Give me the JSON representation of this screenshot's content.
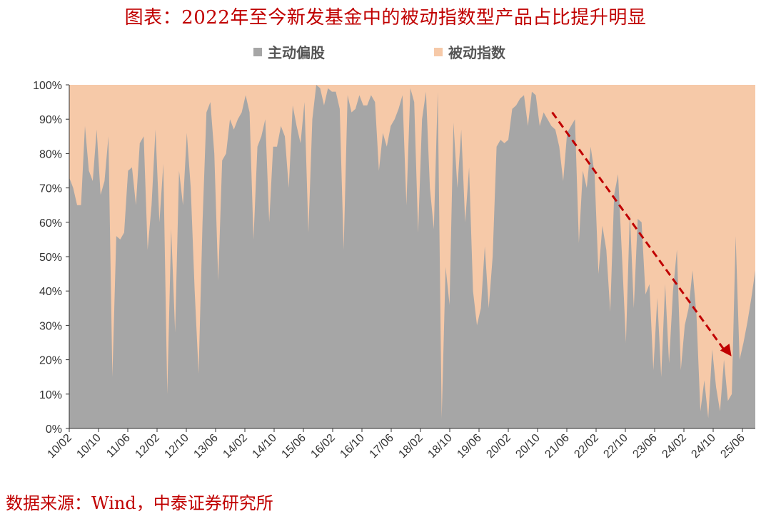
{
  "title": "图表：2022年至今新发基金中的被动指数型产品占比提升明显",
  "source": "数据来源：Wind，中泰证券研究所",
  "colors": {
    "active": "#a6a6a6",
    "passive": "#f6c9a8",
    "arrow": "#c00000",
    "axis": "#333333"
  },
  "chart_data": {
    "type": "area",
    "stacked": true,
    "percent_stacked": true,
    "legend_position": "top",
    "ylim": [
      0,
      1
    ],
    "y_ticks": [
      "0%",
      "10%",
      "20%",
      "30%",
      "40%",
      "50%",
      "60%",
      "70%",
      "80%",
      "90%",
      "100%"
    ],
    "x_tick_labels": [
      "10/02",
      "10/10",
      "11/06",
      "12/02",
      "12/10",
      "13/06",
      "14/02",
      "14/10",
      "15/06",
      "16/02",
      "16/10",
      "17/06",
      "18/02",
      "18/10",
      "19/06",
      "20/02",
      "20/10",
      "21/06",
      "22/02",
      "22/10",
      "23/06",
      "24/02",
      "24/10",
      "25/06"
    ],
    "series": [
      {
        "name": "主动偏股",
        "values": [
          0.73,
          0.7,
          0.65,
          0.65,
          0.88,
          0.75,
          0.72,
          0.87,
          0.68,
          0.72,
          0.85,
          0.15,
          0.56,
          0.55,
          0.57,
          0.75,
          0.76,
          0.65,
          0.83,
          0.85,
          0.52,
          0.65,
          0.87,
          0.6,
          0.77,
          0.1,
          0.58,
          0.28,
          0.75,
          0.65,
          0.86,
          0.7,
          0.4,
          0.16,
          0.6,
          0.92,
          0.95,
          0.8,
          0.43,
          0.78,
          0.8,
          0.9,
          0.87,
          0.9,
          0.92,
          0.97,
          0.92,
          0.55,
          0.82,
          0.85,
          0.9,
          0.6,
          0.82,
          0.82,
          0.88,
          0.85,
          0.7,
          0.94,
          0.88,
          0.83,
          0.95,
          0.57,
          0.9,
          1.0,
          0.99,
          0.94,
          0.99,
          0.98,
          0.98,
          0.93,
          0.52,
          0.97,
          0.92,
          0.93,
          0.97,
          0.94,
          0.94,
          0.97,
          0.95,
          0.75,
          0.86,
          0.82,
          0.88,
          0.9,
          0.93,
          0.97,
          0.65,
          0.99,
          0.95,
          0.57,
          0.9,
          0.98,
          0.7,
          0.58,
          0.98,
          0.03,
          0.47,
          0.36,
          0.89,
          0.7,
          0.87,
          0.6,
          0.76,
          0.4,
          0.3,
          0.35,
          0.53,
          0.35,
          0.5,
          0.82,
          0.84,
          0.83,
          0.84,
          0.93,
          0.94,
          0.96,
          0.97,
          0.88,
          0.98,
          0.97,
          0.88,
          0.92,
          0.9,
          0.88,
          0.87,
          0.82,
          0.72,
          0.86,
          0.88,
          0.9,
          0.54,
          0.75,
          0.7,
          0.82,
          0.74,
          0.45,
          0.59,
          0.52,
          0.34,
          0.68,
          0.74,
          0.5,
          0.25,
          0.63,
          0.35,
          0.61,
          0.6,
          0.39,
          0.42,
          0.17,
          0.38,
          0.15,
          0.42,
          0.19,
          0.4,
          0.52,
          0.17,
          0.3,
          0.35,
          0.46,
          0.33,
          0.05,
          0.14,
          0.03,
          0.23,
          0.12,
          0.05,
          0.2,
          0.08,
          0.1,
          0.56,
          0.2,
          0.25,
          0.31,
          0.38,
          0.46
        ]
      },
      {
        "name": "被动指数",
        "complement_of": "主动偏股"
      }
    ],
    "annotations": [
      {
        "type": "dashed_arrow",
        "from": {
          "x": "21/02",
          "y": 0.92
        },
        "to": {
          "x": "25/03",
          "y": 0.21
        }
      }
    ]
  }
}
